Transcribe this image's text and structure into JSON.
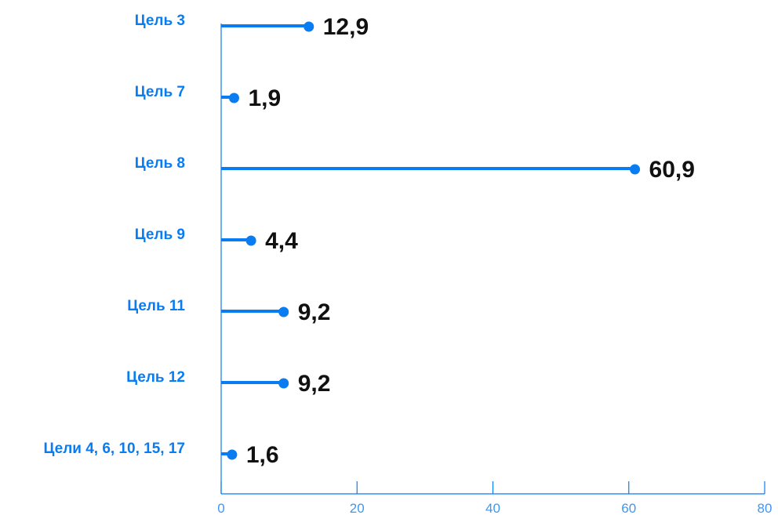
{
  "colors": {
    "accent": "#0a7cf2",
    "value_text": "#111111",
    "axis": "#0a7cf2",
    "tick_text": "#3d97f5"
  },
  "chart_data": {
    "type": "bar",
    "orientation": "horizontal",
    "style": "lollipop",
    "categories": [
      "Цель 3",
      "Цель 7",
      "Цель 8",
      "Цель 9",
      "Цель 11",
      "Цель 12",
      "Цели 4, 6, 10, 15, 17"
    ],
    "values": [
      12.9,
      1.9,
      60.9,
      4.4,
      9.2,
      9.2,
      1.6
    ],
    "value_labels": [
      "12,9",
      "1,9",
      "60,9",
      "4,4",
      "9,2",
      "9,2",
      "1,6"
    ],
    "xlim": [
      0,
      80
    ],
    "xticks": [
      0,
      20,
      40,
      60,
      80
    ],
    "xtick_labels": [
      "0",
      "20",
      "40",
      "60",
      "80"
    ],
    "title": "",
    "xlabel": "",
    "ylabel": "",
    "grid": false,
    "legend": "none"
  }
}
